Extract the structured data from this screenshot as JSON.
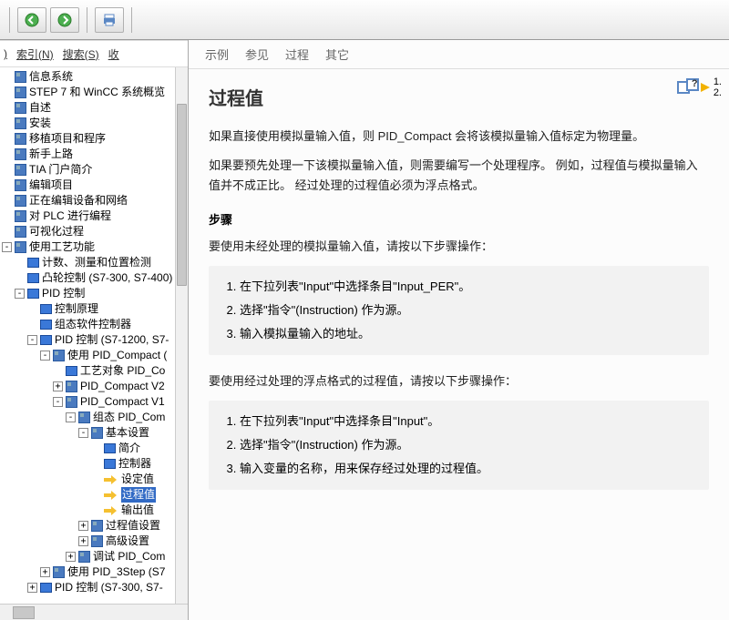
{
  "toolbar": {
    "back_icon": "back",
    "forward_icon": "forward",
    "print_icon": "print"
  },
  "left_tabs": {
    "partial": ")",
    "index": "索引(N)",
    "search": "搜索(S)",
    "fav": "收"
  },
  "tree": [
    {
      "lvl": 1,
      "exp": "",
      "icon": "help",
      "label": "信息系统"
    },
    {
      "lvl": 1,
      "exp": "",
      "icon": "help",
      "label": "STEP 7 和 WinCC 系统概览"
    },
    {
      "lvl": 1,
      "exp": "",
      "icon": "help",
      "label": "自述"
    },
    {
      "lvl": 1,
      "exp": "",
      "icon": "help",
      "label": "安装"
    },
    {
      "lvl": 1,
      "exp": "",
      "icon": "help",
      "label": "移植项目和程序"
    },
    {
      "lvl": 1,
      "exp": "",
      "icon": "help",
      "label": "新手上路"
    },
    {
      "lvl": 1,
      "exp": "",
      "icon": "help",
      "label": "TIA 门户简介"
    },
    {
      "lvl": 1,
      "exp": "",
      "icon": "help",
      "label": "编辑项目"
    },
    {
      "lvl": 1,
      "exp": "",
      "icon": "help",
      "label": "正在编辑设备和网络"
    },
    {
      "lvl": 1,
      "exp": "",
      "icon": "help",
      "label": "对 PLC 进行编程"
    },
    {
      "lvl": 1,
      "exp": "",
      "icon": "help",
      "label": "可视化过程"
    },
    {
      "lvl": 1,
      "exp": "-",
      "icon": "help",
      "label": "使用工艺功能"
    },
    {
      "lvl": 2,
      "exp": "",
      "icon": "book",
      "label": "计数、测量和位置检测"
    },
    {
      "lvl": 2,
      "exp": "",
      "icon": "book",
      "label": "凸轮控制 (S7-300, S7-400)"
    },
    {
      "lvl": 2,
      "exp": "-",
      "icon": "book",
      "label": "PID 控制"
    },
    {
      "lvl": 3,
      "exp": "",
      "icon": "book",
      "label": "控制原理"
    },
    {
      "lvl": 3,
      "exp": "",
      "icon": "book",
      "label": "组态软件控制器"
    },
    {
      "lvl": 3,
      "exp": "-",
      "icon": "book",
      "label": "PID 控制 (S7-1200, S7-"
    },
    {
      "lvl": 4,
      "exp": "-",
      "icon": "help",
      "label": "使用 PID_Compact ("
    },
    {
      "lvl": 5,
      "exp": "",
      "icon": "book",
      "label": "工艺对象 PID_Co"
    },
    {
      "lvl": 5,
      "exp": "+",
      "icon": "help",
      "label": "PID_Compact V2"
    },
    {
      "lvl": 5,
      "exp": "-",
      "icon": "help",
      "label": "PID_Compact V1"
    },
    {
      "lvl": 6,
      "exp": "-",
      "icon": "help",
      "label": "组态 PID_Com"
    },
    {
      "lvl": 7,
      "exp": "-",
      "icon": "help",
      "label": "基本设置"
    },
    {
      "lvl": 7,
      "exp": "",
      "icon": "book",
      "label": "简介",
      "pad": 14
    },
    {
      "lvl": 7,
      "exp": "",
      "icon": "book",
      "label": "控制器",
      "pad": 14
    },
    {
      "lvl": 7,
      "exp": "",
      "icon": "arrow",
      "label": "设定值",
      "pad": 14
    },
    {
      "lvl": 7,
      "exp": "",
      "icon": "arrow",
      "label": "过程值",
      "sel": true,
      "pad": 14
    },
    {
      "lvl": 7,
      "exp": "",
      "icon": "arrow",
      "label": "输出值",
      "pad": 14
    },
    {
      "lvl": 7,
      "exp": "+",
      "icon": "help",
      "label": "过程值设置"
    },
    {
      "lvl": 7,
      "exp": "+",
      "icon": "help",
      "label": "高级设置"
    },
    {
      "lvl": 6,
      "exp": "+",
      "icon": "help",
      "label": "调试 PID_Com"
    },
    {
      "lvl": 4,
      "exp": "+",
      "icon": "help",
      "label": "使用 PID_3Step (S7"
    },
    {
      "lvl": 3,
      "exp": "+",
      "icon": "book",
      "label": "PID 控制 (S7-300, S7-"
    }
  ],
  "content_tabs": {
    "t1": "示例",
    "t2": "参见",
    "t3": "过程",
    "t4": "其它"
  },
  "content": {
    "title": "过程值",
    "p1": "如果直接使用模拟量输入值，则 PID_Compact 会将该模拟量输入值标定为物理量。",
    "p2": "如果要预先处理一下该模拟量输入值，则需要编写一个处理程序。 例如，过程值与模拟量输入值并不成正比。 经过处理的过程值必须为浮点格式。",
    "steps_heading": "步骤",
    "lead1": "要使用未经处理的模拟量输入值，请按以下步骤操作：",
    "list1": {
      "i1": "在下拉列表\"Input\"中选择条目\"Input_PER\"。",
      "i2": "选择\"指令\"(Instruction) 作为源。",
      "i3": "输入模拟量输入的地址。"
    },
    "lead2": "要使用经过处理的浮点格式的过程值，请按以下步骤操作：",
    "list2": {
      "i1": "在下拉列表\"Input\"中选择条目\"Input\"。",
      "i2": "选择\"指令\"(Instruction) 作为源。",
      "i3": "输入变量的名称，用来保存经过处理的过程值。"
    },
    "nav": {
      "n1": "1.",
      "n2": "2."
    }
  }
}
